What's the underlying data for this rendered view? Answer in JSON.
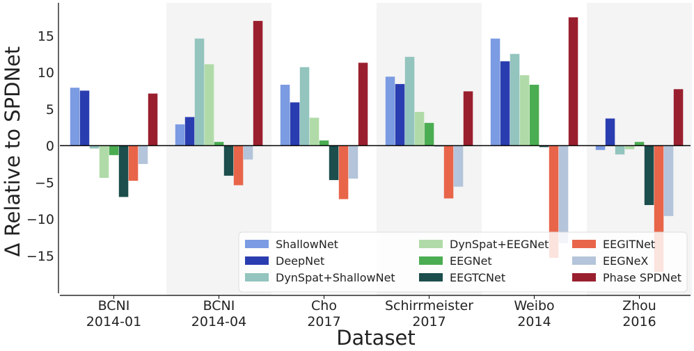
{
  "chart_data": {
    "type": "bar",
    "xlabel": "Dataset",
    "ylabel": "Δ Relative to SPDNet",
    "ylim": [
      -20,
      19
    ],
    "yticks": [
      -15,
      -10,
      -5,
      0,
      5,
      10,
      15
    ],
    "categories": [
      {
        "line1": "BCNI",
        "line2": "2014-01"
      },
      {
        "line1": "BCNI",
        "line2": "2014-04"
      },
      {
        "line1": "Cho",
        "line2": "2017"
      },
      {
        "line1": "Schirrmeister",
        "line2": "2017"
      },
      {
        "line1": "Weibo",
        "line2": "2014"
      },
      {
        "line1": "Zhou",
        "line2": "2016"
      }
    ],
    "shaded_groups": [
      1,
      3,
      5
    ],
    "legend_placement": "lower-right",
    "series": [
      {
        "name": "ShallowNet",
        "color": "#7b9be2",
        "values": [
          7.9,
          2.9,
          8.3,
          9.4,
          14.6,
          -0.6
        ]
      },
      {
        "name": "DeepNet",
        "color": "#2a3db0",
        "values": [
          7.5,
          3.9,
          5.9,
          8.4,
          11.5,
          3.7
        ]
      },
      {
        "name": "DynSpat+ShallowNet",
        "color": "#93c4be",
        "values": [
          -0.4,
          14.6,
          10.7,
          12.1,
          12.5,
          -1.2
        ]
      },
      {
        "name": "DynSpat+EEGNet",
        "color": "#b0dba8",
        "values": [
          -4.4,
          11.1,
          3.8,
          4.6,
          9.6,
          -0.5
        ]
      },
      {
        "name": "EEGNet",
        "color": "#4bad52",
        "values": [
          -1.3,
          0.5,
          0.7,
          3.1,
          8.3,
          0.5
        ]
      },
      {
        "name": "EEGTCNet",
        "color": "#1b4e4c",
        "values": [
          -7.0,
          -4.1,
          -4.7,
          -0.1,
          -0.2,
          -8.1
        ]
      },
      {
        "name": "EEGITNet",
        "color": "#e8654a",
        "values": [
          -4.8,
          -5.4,
          -7.3,
          -7.2,
          -15.3,
          -17.2
        ]
      },
      {
        "name": "EEGNeX",
        "color": "#b4c4da",
        "values": [
          -2.5,
          -1.9,
          -4.5,
          -5.6,
          -13.3,
          -9.6
        ]
      },
      {
        "name": "Phase SPDNet",
        "color": "#9a1f2e",
        "values": [
          7.1,
          17.0,
          11.3,
          7.4,
          17.5,
          7.7
        ]
      }
    ]
  }
}
